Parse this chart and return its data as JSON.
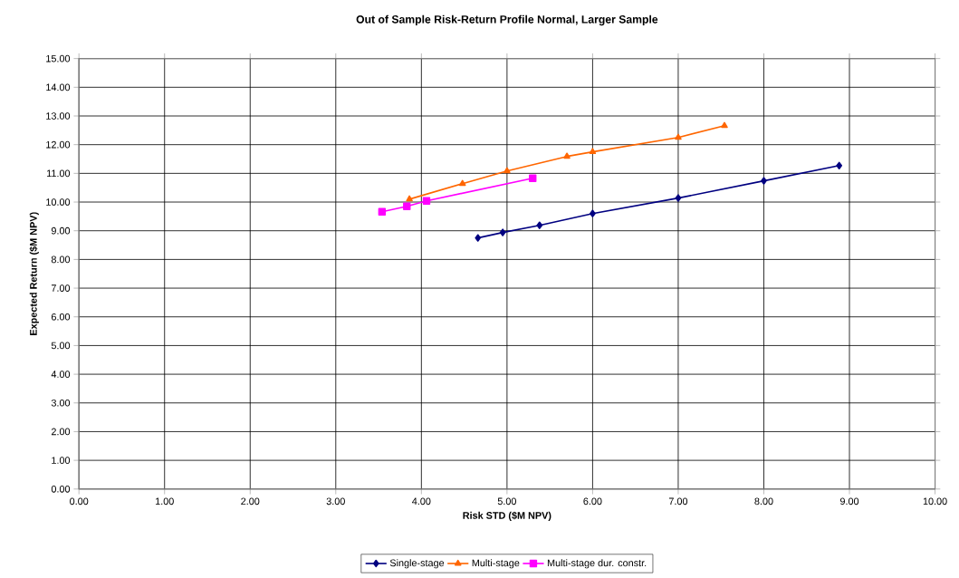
{
  "chart_data": {
    "type": "line",
    "title": "Out of Sample Risk-Return Profile Normal, Larger Sample",
    "xlabel": "Risk STD ($M NPV)",
    "ylabel": "Expected Return ($M NPV)",
    "xlim": [
      0,
      10
    ],
    "ylim": [
      0,
      15
    ],
    "xticks": [
      {
        "value": 0,
        "label": "0.00"
      },
      {
        "value": 1,
        "label": "1.00"
      },
      {
        "value": 2,
        "label": "2.00"
      },
      {
        "value": 3,
        "label": "3.00"
      },
      {
        "value": 4,
        "label": "4.00"
      },
      {
        "value": 5,
        "label": "5.00"
      },
      {
        "value": 6,
        "label": "6.00"
      },
      {
        "value": 7,
        "label": "7.00"
      },
      {
        "value": 8,
        "label": "8.00"
      },
      {
        "value": 9,
        "label": "9.00"
      },
      {
        "value": 10,
        "label": "10.00"
      }
    ],
    "yticks": [
      {
        "value": 0,
        "label": "0.00"
      },
      {
        "value": 1,
        "label": "1.00"
      },
      {
        "value": 2,
        "label": "2.00"
      },
      {
        "value": 3,
        "label": "3.00"
      },
      {
        "value": 4,
        "label": "4.00"
      },
      {
        "value": 5,
        "label": "5.00"
      },
      {
        "value": 6,
        "label": "6.00"
      },
      {
        "value": 7,
        "label": "7.00"
      },
      {
        "value": 8,
        "label": "8.00"
      },
      {
        "value": 9,
        "label": "9.00"
      },
      {
        "value": 10,
        "label": "10.00"
      },
      {
        "value": 11,
        "label": "11.00"
      },
      {
        "value": 12,
        "label": "12.00"
      },
      {
        "value": 13,
        "label": "13.00"
      },
      {
        "value": 14,
        "label": "14.00"
      },
      {
        "value": 15,
        "label": "15.00"
      }
    ],
    "grid": true,
    "legend": "bottom",
    "series": [
      {
        "name": "Single-stage",
        "color": "#000080",
        "marker": "diamond",
        "x": [
          4.66,
          4.95,
          5.38,
          6.0,
          7.0,
          8.0,
          8.88
        ],
        "values": [
          8.75,
          8.94,
          9.19,
          9.6,
          10.14,
          10.74,
          11.27
        ]
      },
      {
        "name": "Multi-stage",
        "color": "#ff6600",
        "marker": "triangle",
        "x": [
          3.86,
          4.48,
          5.0,
          5.7,
          6.0,
          7.0,
          7.54
        ],
        "values": [
          10.1,
          10.64,
          11.08,
          11.59,
          11.75,
          12.25,
          12.66
        ]
      },
      {
        "name": "Multi-stage dur. constr.",
        "color": "#ff00ff",
        "marker": "square",
        "x": [
          3.54,
          3.83,
          4.06,
          5.3
        ],
        "values": [
          9.66,
          9.85,
          10.04,
          10.83
        ]
      }
    ]
  }
}
